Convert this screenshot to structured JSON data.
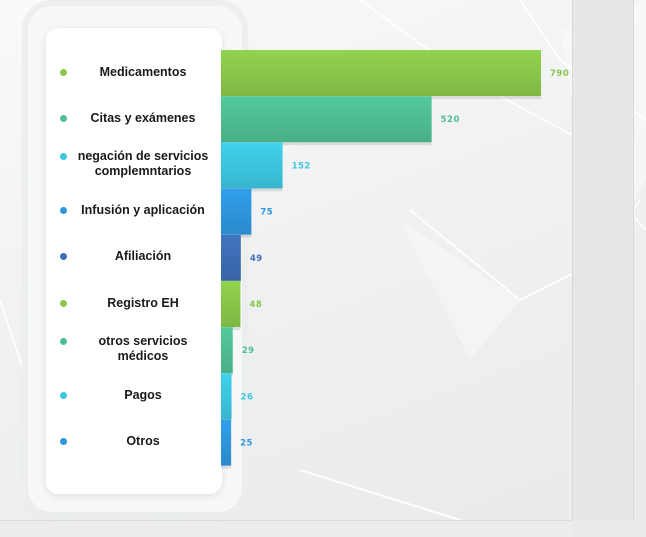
{
  "chart_data": {
    "type": "bar",
    "orientation": "horizontal",
    "categories": [
      "Medicamentos",
      "Citas y exámenes",
      "negación de servicios complemntarios",
      "Infusión y aplicación",
      "Afiliación",
      "Registro EH",
      "otros servicios médicos",
      "Pagos",
      "Otros"
    ],
    "category_lines": [
      [
        "Medicamentos"
      ],
      [
        "Citas y exámenes"
      ],
      [
        "negación de servicios",
        "complemntarios"
      ],
      [
        "Infusión y aplicación"
      ],
      [
        "Afiliación"
      ],
      [
        "Registro EH"
      ],
      [
        "otros servicios",
        "médicos"
      ],
      [
        "Pagos"
      ],
      [
        "Otros"
      ]
    ],
    "values": [
      790,
      520,
      152,
      75,
      49,
      48,
      29,
      26,
      25
    ],
    "value_labels": [
      "790",
      "520",
      "152",
      "75",
      "49",
      "48",
      "29",
      "26",
      "25"
    ],
    "colors": [
      "#8ac74a",
      "#4fbe92",
      "#3cc6e0",
      "#2f96de",
      "#3d6db4",
      "#8ac74a",
      "#4fbe92",
      "#3cc6e0",
      "#2f96de"
    ],
    "value_label_colors": [
      "#8ac74a",
      "#4fbe92",
      "#3cc6e0",
      "#2f96de",
      "#3d6db4",
      "#8ac74a",
      "#4fbe92",
      "#3cc6e0",
      "#2f96de"
    ],
    "title": "",
    "xlabel": "",
    "ylabel": "",
    "grid": false,
    "legend": "none"
  }
}
